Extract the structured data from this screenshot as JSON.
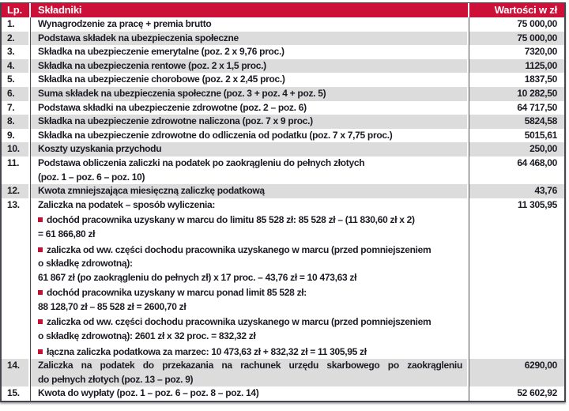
{
  "document": {
    "type": "payroll-tax-calculation-table",
    "language": "pl"
  },
  "colors": {
    "header_background": "#cd1037",
    "header_text": "#ffffff",
    "stripe_gray": "#dcdcdc",
    "ink": "#1b1b24",
    "rule": "#4d4d55",
    "bullet_red": "#c51034"
  },
  "header": {
    "col_lp": "Lp.",
    "col_name": "Składniki",
    "col_value": "Wartości w zł"
  },
  "rows": [
    {
      "no": "1.",
      "text": "Wynagrodzenie za pracę + premia brutto",
      "value": "75 000,00"
    },
    {
      "no": "2.",
      "text": "Podstawa składek na ubezpieczenia społeczne",
      "value": "75 000,00"
    },
    {
      "no": "3.",
      "text": "Składka na ubezpieczenie emerytalne (poz. 2 x 9,76 proc.)",
      "value": "7320,00"
    },
    {
      "no": "4.",
      "text": "Składka na ubezpieczenia rentowe (poz. 2 x 1,5 proc.)",
      "value": "1125,00"
    },
    {
      "no": "5.",
      "text": "Składka na ubezpieczenie chorobowe (poz. 2 x 2,45 proc.)",
      "value": "1837,50"
    },
    {
      "no": "6.",
      "text": "Suma składek na ubezpieczenia społeczne (poz. 3 + poz. 4 + poz. 5)",
      "value": "10 282,50"
    },
    {
      "no": "7.",
      "text": "Podstawa składki na ubezpieczenie zdrowotne (poz. 2 – poz. 6)",
      "value": "64 717,50"
    },
    {
      "no": "8.",
      "text": "Składka na ubezpieczenie zdrowotne naliczona (poz. 7 x 9 proc.)",
      "value": "5824,58"
    },
    {
      "no": "9.",
      "text": "Składka na ubezpieczenie zdrowotne do odliczenia od podatku (poz. 7 x 7,75 proc.)",
      "value": "5015,61"
    },
    {
      "no": "10.",
      "text": "Koszty uzyskania przychodu",
      "value": "250,00"
    },
    {
      "no": "11.",
      "text": "Podstawa obliczenia zaliczki na podatek po zaokrągleniu do pełnych złotych",
      "text2": "(poz. 1 – poz. 6 – poz. 10)",
      "value": "64 468,00"
    },
    {
      "no": "12.",
      "text": "Kwota zmniejszająca miesięczną zaliczkę podatkową",
      "value": "43,76"
    },
    {
      "no": "13.",
      "text": "Zaliczka na podatek – sposób wyliczenia:",
      "value": "11 305,95",
      "details": [
        {
          "bullet": true,
          "text": "dochód pracownika uzyskany w marcu do limitu 85 528 zł: 85 528 zł – (11 830,60 zł x 2)"
        },
        {
          "bullet": false,
          "text": "= 61 866,80 zł"
        },
        {
          "bullet": true,
          "text": "zaliczka od ww. części dochodu pracownika uzyskanego w marcu (przed pomniejszeniem"
        },
        {
          "bullet": false,
          "text": "o składkę zdrowotną):"
        },
        {
          "bullet": false,
          "text": "61 867 zł (po zaokrągleniu do pełnych zł) x 17 proc. – 43,76 zł = 10 473,63 zł"
        },
        {
          "bullet": true,
          "text": "dochód pracownika uzyskany w marcu ponad limit 85 528 zł:"
        },
        {
          "bullet": false,
          "text": "88 128,70 zł – 85 528 zł = 2600,70 zł"
        },
        {
          "bullet": true,
          "text": "zaliczka od ww. części dochodu pracownika uzyskanego w marcu (przed pomniejszeniem"
        },
        {
          "bullet": false,
          "text": "o składkę zdrowotną): 2601 zł x 32 proc. = 832,32 zł"
        },
        {
          "bullet": true,
          "text": "łączna zaliczka podatkowa za marzec: 10 473,63 zł + 832,32 zł = 11 305,95 zł"
        }
      ]
    },
    {
      "no": "14.",
      "text": "Zaliczka na podatek do przekazania na rachunek urzędu skarbowego po zaokrągleniu",
      "text2": "do pełnych złotych (poz. 13 – poz. 9)",
      "value": "6290,00"
    },
    {
      "no": "15.",
      "text": "Kwota do wypłaty (poz. 1 – poz. 6 – poz. 8 – poz. 14)",
      "value": "52 602,92"
    }
  ]
}
